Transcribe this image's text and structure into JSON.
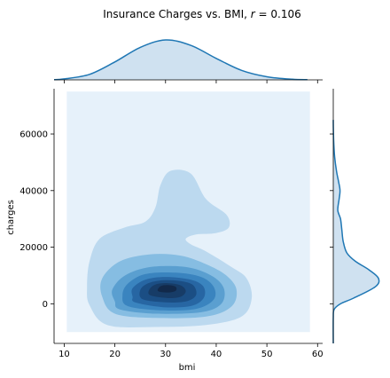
{
  "chart_data": {
    "type": "kde_joint",
    "title_prefix": "Insurance Charges vs. BMI, ",
    "title_stat_symbol": "r",
    "title_stat_value": "= 0.106",
    "xlabel": "bmi",
    "ylabel": "charges",
    "xlim": [
      8,
      61
    ],
    "ylim": [
      -14000,
      76000
    ],
    "xticks": [
      10,
      20,
      30,
      40,
      50,
      60
    ],
    "yticks": [
      0,
      20000,
      40000,
      60000
    ],
    "grid": false,
    "colors": {
      "background_region": "#e6f1fa",
      "levels": [
        "#bcd9ef",
        "#86bde2",
        "#5a9fd0",
        "#3a84bf",
        "#2766a3",
        "#1b4e84",
        "#173c67",
        "#12294a"
      ],
      "marginal_line": "#1f77b4",
      "marginal_fill": "#cfe1f0"
    },
    "kde_support": {
      "x": [
        10.5,
        58.5
      ],
      "y": [
        -10000,
        75000
      ]
    },
    "density_contours": [
      {
        "level": 1,
        "points": [
          [
            18.5,
            -7500
          ],
          [
            28,
            -8200
          ],
          [
            38,
            -7500
          ],
          [
            45,
            -4500
          ],
          [
            47,
            2000
          ],
          [
            46,
            9000
          ],
          [
            43,
            13000
          ],
          [
            38,
            18500
          ],
          [
            35,
            21000
          ],
          [
            34,
            23000
          ],
          [
            36,
            24500
          ],
          [
            40,
            25000
          ],
          [
            42.5,
            27000
          ],
          [
            42,
            31500
          ],
          [
            38,
            37000
          ],
          [
            35,
            46000
          ],
          [
            31,
            47000
          ],
          [
            29,
            42000
          ],
          [
            28,
            34000
          ],
          [
            26,
            29000
          ],
          [
            22,
            27000
          ],
          [
            17,
            23000
          ],
          [
            15,
            15000
          ],
          [
            14.5,
            6000
          ],
          [
            15,
            -500
          ]
        ]
      },
      {
        "level": 2,
        "points": [
          [
            20,
            -3500
          ],
          [
            28,
            -5000
          ],
          [
            38,
            -4500
          ],
          [
            43,
            -1000
          ],
          [
            44,
            5000
          ],
          [
            42,
            10000
          ],
          [
            38,
            14000
          ],
          [
            33,
            17000
          ],
          [
            27,
            17500
          ],
          [
            21,
            15000
          ],
          [
            17.5,
            9000
          ],
          [
            17.5,
            2500
          ]
        ]
      },
      {
        "level": 3,
        "points": [
          [
            21,
            -2000
          ],
          [
            28,
            -3500
          ],
          [
            37,
            -3000
          ],
          [
            41,
            0
          ],
          [
            41.5,
            5500
          ],
          [
            39,
            10000
          ],
          [
            34,
            13000
          ],
          [
            27,
            13000
          ],
          [
            22,
            10000
          ],
          [
            19.5,
            5000
          ],
          [
            20,
            800
          ]
        ]
      },
      {
        "level": 4,
        "points": [
          [
            22.5,
            -800
          ],
          [
            29,
            -2300
          ],
          [
            36,
            -1800
          ],
          [
            39.5,
            1500
          ],
          [
            39.5,
            6000
          ],
          [
            37,
            9500
          ],
          [
            32,
            11000
          ],
          [
            26,
            10500
          ],
          [
            22.5,
            7000
          ],
          [
            21.5,
            3000
          ]
        ]
      },
      {
        "level": 5,
        "points": [
          [
            24,
            500
          ],
          [
            29.5,
            -1200
          ],
          [
            35,
            -800
          ],
          [
            37.5,
            2000
          ],
          [
            37.5,
            6000
          ],
          [
            35,
            8500
          ],
          [
            30,
            9500
          ],
          [
            26,
            8500
          ],
          [
            23.5,
            5500
          ],
          [
            23.5,
            2500
          ]
        ]
      },
      {
        "level": 6,
        "points": [
          [
            25.5,
            1600
          ],
          [
            30,
            500
          ],
          [
            34,
            800
          ],
          [
            36,
            3000
          ],
          [
            35.5,
            6500
          ],
          [
            33,
            8000
          ],
          [
            29.5,
            8300
          ],
          [
            26.5,
            7200
          ],
          [
            25,
            4800
          ]
        ]
      },
      {
        "level": 7,
        "points": [
          [
            27,
            3000
          ],
          [
            30.5,
            2000
          ],
          [
            33,
            2500
          ],
          [
            34,
            4500
          ],
          [
            33,
            6500
          ],
          [
            30.5,
            7300
          ],
          [
            28,
            6800
          ],
          [
            26.8,
            5000
          ]
        ]
      },
      {
        "level": 8,
        "points": [
          [
            28.5,
            4500
          ],
          [
            30.5,
            4000
          ],
          [
            32,
            4600
          ],
          [
            32,
            6000
          ],
          [
            30.5,
            6600
          ],
          [
            29,
            6200
          ]
        ]
      }
    ],
    "marginal_x": {
      "x": [
        5,
        10,
        15,
        20,
        25,
        30,
        35,
        40,
        45,
        50,
        55,
        58
      ],
      "density": [
        0.0003,
        0.002,
        0.011,
        0.036,
        0.065,
        0.08,
        0.069,
        0.043,
        0.019,
        0.0062,
        0.0012,
        0.0003
      ]
    },
    "marginal_y": {
      "y": [
        -14000,
        -5000,
        -2000,
        0,
        2000,
        6000,
        9000,
        12000,
        15000,
        18000,
        22000,
        26000,
        30000,
        33000,
        37000,
        40000,
        43000,
        47000,
        52000,
        58000,
        62000,
        65000
      ],
      "density": [
        0,
        0.0,
        0.02,
        0.16,
        0.45,
        0.93,
        1.0,
        0.79,
        0.49,
        0.3,
        0.22,
        0.19,
        0.16,
        0.1,
        0.13,
        0.15,
        0.12,
        0.07,
        0.03,
        0.008,
        0.002,
        0
      ]
    }
  }
}
